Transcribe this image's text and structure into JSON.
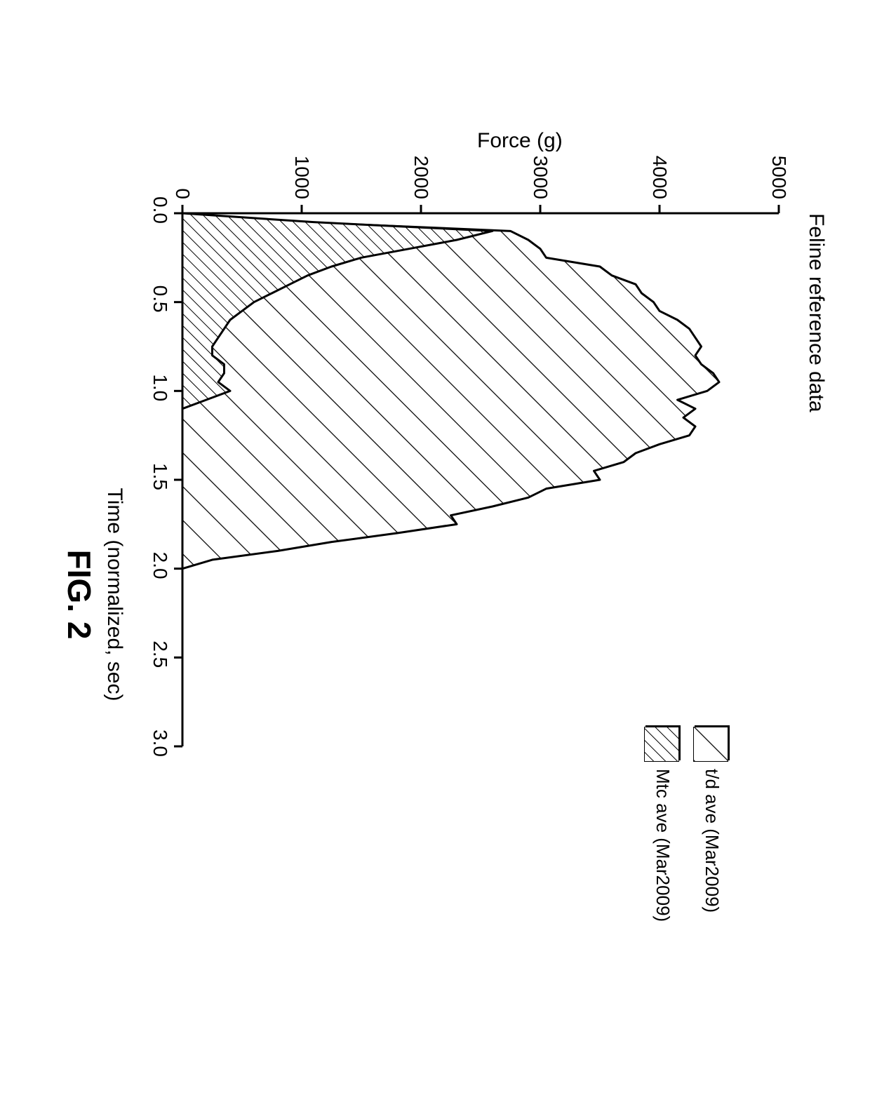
{
  "figure_label": "FIG. 2",
  "chart": {
    "type": "area",
    "title": "Feline reference data",
    "xlabel": "Time (normalized, sec)",
    "ylabel": "Force (g)",
    "xlim": [
      0.0,
      3.0
    ],
    "ylim": [
      0,
      5000
    ],
    "xtick_step": 0.5,
    "ytick_step": 1000,
    "xticks": [
      "0.0",
      "0.5",
      "1.0",
      "1.5",
      "2.0",
      "2.5",
      "3.0"
    ],
    "yticks": [
      "0",
      "1000",
      "2000",
      "3000",
      "4000",
      "5000"
    ],
    "background_color": "#ffffff",
    "axis_color": "#000000",
    "tick_fontsize": 28,
    "label_fontsize": 30,
    "title_fontsize": 30,
    "axis_linewidth": 3,
    "series": [
      {
        "name": "t/d ave (Mar2009)",
        "hatch": "diag-wide",
        "stroke": "#000000",
        "stroke_width": 3,
        "fill": "#ffffff",
        "x": [
          0.0,
          0.05,
          0.1,
          0.15,
          0.2,
          0.25,
          0.3,
          0.35,
          0.4,
          0.45,
          0.5,
          0.55,
          0.6,
          0.65,
          0.7,
          0.75,
          0.8,
          0.85,
          0.9,
          0.95,
          1.0,
          1.05,
          1.1,
          1.15,
          1.2,
          1.25,
          1.3,
          1.35,
          1.4,
          1.45,
          1.5,
          1.55,
          1.6,
          1.65,
          1.7,
          1.75,
          1.8,
          1.85,
          1.9,
          1.95,
          2.0
        ],
        "y": [
          0,
          1000,
          2750,
          2900,
          3000,
          3050,
          3500,
          3600,
          3800,
          3850,
          3950,
          4000,
          4150,
          4250,
          4300,
          4350,
          4300,
          4350,
          4450,
          4500,
          4400,
          4150,
          4300,
          4200,
          4300,
          4250,
          4000,
          3800,
          3700,
          3450,
          3500,
          3050,
          2900,
          2600,
          2250,
          2300,
          1800,
          1250,
          800,
          250,
          0
        ]
      },
      {
        "name": "Mtc ave (Mar2009)",
        "hatch": "diag-dense",
        "stroke": "#000000",
        "stroke_width": 3,
        "fill": "#ffffff",
        "x": [
          0.0,
          0.05,
          0.1,
          0.15,
          0.2,
          0.25,
          0.3,
          0.35,
          0.4,
          0.45,
          0.5,
          0.55,
          0.6,
          0.65,
          0.7,
          0.75,
          0.8,
          0.85,
          0.9,
          0.95,
          1.0,
          1.05,
          1.1
        ],
        "y": [
          0,
          1100,
          2600,
          2300,
          1900,
          1500,
          1250,
          1050,
          900,
          750,
          600,
          500,
          400,
          350,
          300,
          250,
          250,
          350,
          350,
          300,
          400,
          200,
          0
        ]
      }
    ],
    "legend": {
      "position": "right",
      "swatch_size": 50,
      "fontsize": 26,
      "items": [
        {
          "label": "t/d ave (Mar2009)",
          "hatch": "diag-wide"
        },
        {
          "label": "Mtc ave (Mar2009)",
          "hatch": "diag-dense"
        }
      ]
    }
  }
}
